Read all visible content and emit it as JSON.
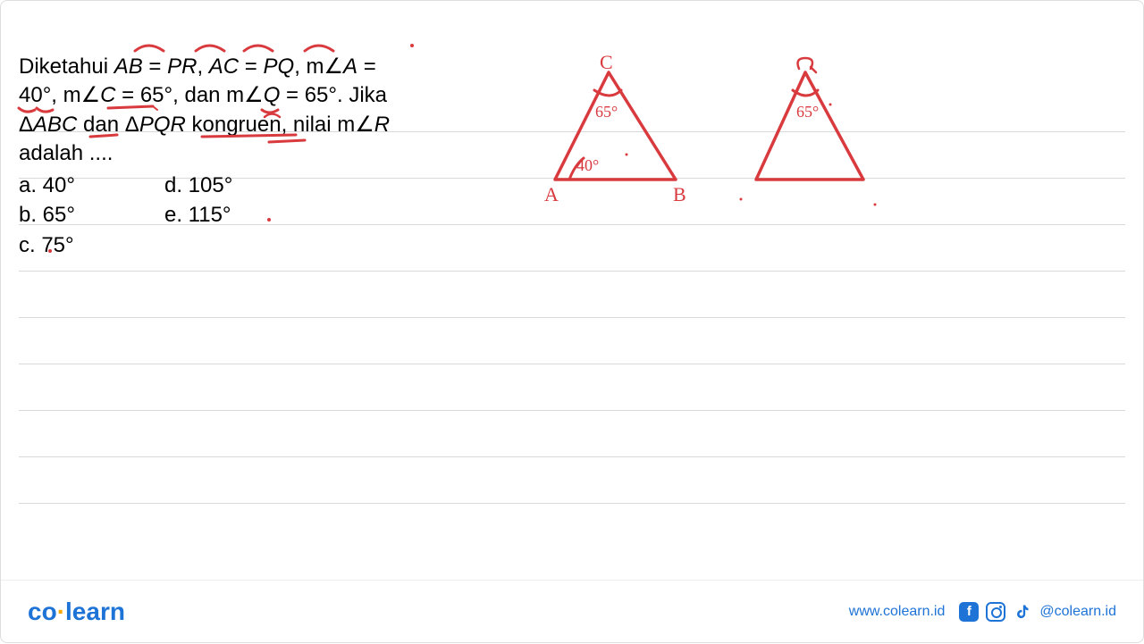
{
  "question": {
    "line1_pre": "Diketahui ",
    "line1_ab": "AB",
    "line1_eq1": " = ",
    "line1_pr": "PR",
    "line1_c1": ", ",
    "line1_ac": "AC",
    "line1_eq2": " = ",
    "line1_pq": "PQ",
    "line1_c2": ", m∠",
    "line1_a": "A",
    "line1_eq3": " =",
    "line2_pre": "40°, m∠",
    "line2_c": "C",
    "line2_mid": " = 65°, dan m∠",
    "line2_q": "Q",
    "line2_end": " = 65°. Jika",
    "line3_pre": "Δ",
    "line3_abc": "ABC",
    "line3_mid": " dan Δ",
    "line3_pqr": "PQR",
    "line3_end": " kongruen, nilai m∠",
    "line3_r": "R",
    "line4": "adalah ...."
  },
  "options": {
    "a": "a.   40°",
    "b": "b.   65°",
    "c": "c.   75°",
    "d": "d.   105°",
    "e": "e.   115°"
  },
  "handwriting": {
    "labelC": "C",
    "labelA": "A",
    "labelB": "B",
    "labelQ": "Q",
    "angle65": "65°",
    "angle65b": "65°",
    "angle40": "40°",
    "stroke": "#d83a3e",
    "strokeWidth": 3
  },
  "footer": {
    "logo_co": "co",
    "logo_dot": "·",
    "logo_learn": "learn",
    "url": "www.colearn.id",
    "handle": "@colearn.id"
  },
  "layout": {
    "ruleYs": [
      146,
      198,
      250,
      302,
      354,
      406,
      458,
      510,
      562
    ]
  }
}
